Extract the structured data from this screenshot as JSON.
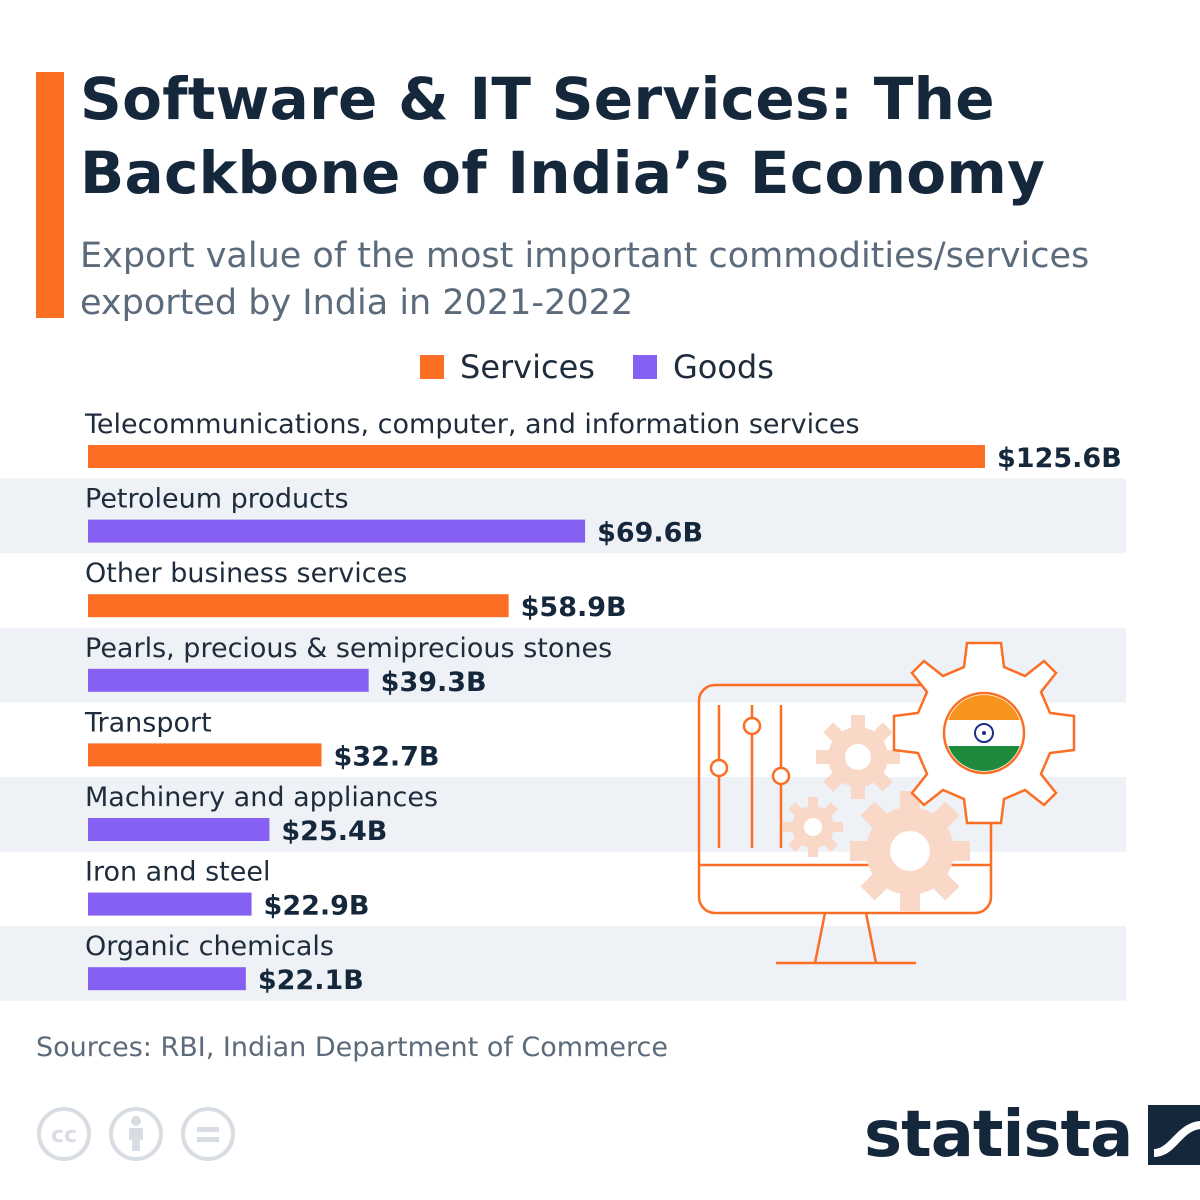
{
  "header": {
    "title": "Software & IT Services: The Backbone of India’s Economy",
    "subtitle": "Export value of the most important commodities/services exported by India in 2021-2022"
  },
  "legend": [
    {
      "label": "Services",
      "color": "#fb6e23"
    },
    {
      "label": "Goods",
      "color": "#8660f3"
    }
  ],
  "footer": {
    "source": "Sources: RBI, Indian Department of Commerce",
    "brand": "statista",
    "license_icons": [
      "cc-icon",
      "attribution-icon",
      "no-derivatives-icon"
    ]
  },
  "illustration": {
    "icon": "computer-gears-india-flag-icon"
  },
  "colors": {
    "services": "#fb6e23",
    "goods": "#8660f3",
    "row_stripe": "#eef1f6",
    "title": "#15273b",
    "illustration_light": "#f9d8c8"
  },
  "chart_data": {
    "type": "bar",
    "orientation": "horizontal",
    "title": "Software & IT Services: The Backbone of India’s Economy",
    "subtitle": "Export value of the most important commodities/services exported by India in 2021-2022",
    "categories": [
      "Telecommunications, computer, and information services",
      "Petroleum products",
      "Other business services",
      "Pearls, precious & semiprecious stones",
      "Transport",
      "Machinery and appliances",
      "Iron and steel",
      "Organic chemicals"
    ],
    "values": [
      125.6,
      69.6,
      58.9,
      39.3,
      32.7,
      25.4,
      22.9,
      22.1
    ],
    "value_labels": [
      "$125.6B",
      "$69.6B",
      "$58.9B",
      "$39.3B",
      "$32.7B",
      "$25.4B",
      "$22.9B",
      "$22.1B"
    ],
    "kinds": [
      "Services",
      "Goods",
      "Services",
      "Goods",
      "Services",
      "Goods",
      "Goods",
      "Goods"
    ],
    "unit": "billion U.S. dollars",
    "legend": [
      "Services",
      "Goods"
    ],
    "legend_position": "top",
    "grid": false,
    "xlim": [
      0,
      125.6
    ]
  }
}
